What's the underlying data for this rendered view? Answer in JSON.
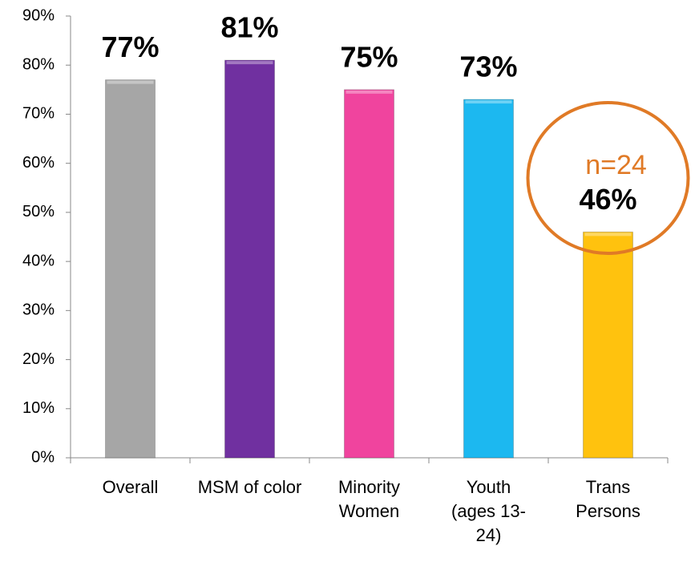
{
  "chart_data": {
    "type": "bar",
    "categories": [
      "Overall",
      "MSM of color",
      "Minority Women",
      "Youth (ages 13-24)",
      "Trans Persons"
    ],
    "values": [
      77,
      81,
      75,
      73,
      46
    ],
    "value_labels": [
      "77%",
      "81%",
      "75%",
      "73%",
      "46%"
    ],
    "colors": [
      "#a6a6a6",
      "#7030a0",
      "#f0449e",
      "#1cb8f0",
      "#ffc20e"
    ],
    "ylim": [
      0,
      90
    ],
    "yticks": [
      {
        "value": 0,
        "label": "0%"
      },
      {
        "value": 10,
        "label": "10%"
      },
      {
        "value": 20,
        "label": "20%"
      },
      {
        "value": 30,
        "label": "30%"
      },
      {
        "value": 40,
        "label": "40%"
      },
      {
        "value": 50,
        "label": "50%"
      },
      {
        "value": 60,
        "label": "60%"
      },
      {
        "value": 70,
        "label": "70%"
      },
      {
        "value": 80,
        "label": "80%"
      },
      {
        "value": 90,
        "label": "90%"
      }
    ],
    "annotation": "n=24",
    "annotation_color": "#e07a26"
  }
}
